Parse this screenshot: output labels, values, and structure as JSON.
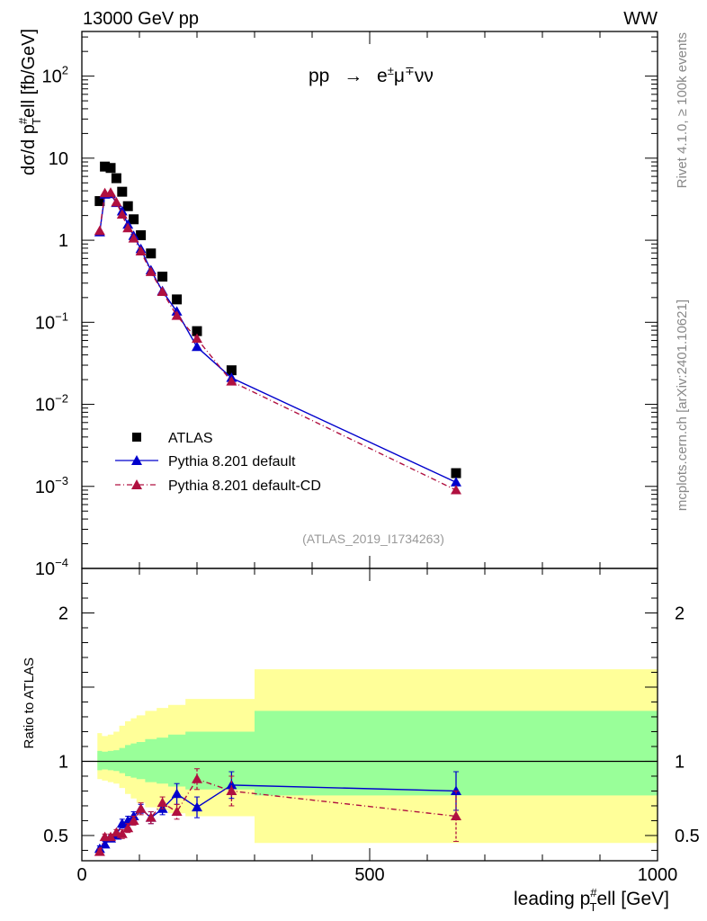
{
  "chart_data": {
    "type": "scatter",
    "header_left": "13000 GeV pp",
    "header_right": "WW",
    "process_label": "pp → e±μ∓νν",
    "process_parts": {
      "pp": "pp",
      "arrow": "→",
      "e": "e",
      "e_sup": "±",
      "mu": "μ",
      "mu_sup": "∓",
      "nunu": "νν"
    },
    "side_label_top": "Rivet 4.1.0, ≥ 100k events",
    "side_label_bottom": "mcplots.cern.ch [arXiv:2401.10621]",
    "analysis_id": "(ATLAS_2019_I1734263)",
    "main_ylabel": {
      "prefix": "dσ/d p",
      "sup": "#",
      "sub": "T",
      "suffix": "ell [fb/GeV]"
    },
    "ratio_ylabel": "Ratio to ATLAS",
    "xlabel": {
      "prefix": "leading p",
      "sup": "#",
      "sub": "T",
      "suffix": "ell [GeV]"
    },
    "xlim": [
      0,
      1000
    ],
    "main_ylim": [
      0.0001,
      350
    ],
    "ratio_ylim": [
      0.33,
      2.3
    ],
    "x_ticks": [
      {
        "v": 0,
        "label": "0"
      },
      {
        "v": 500,
        "label": "500"
      },
      {
        "v": 1000,
        "label": "1000"
      }
    ],
    "main_y_ticks": [
      {
        "v": 100,
        "base": "10",
        "exp": "2"
      },
      {
        "v": 10,
        "base": "10",
        "exp": ""
      },
      {
        "v": 1,
        "base": "1",
        "exp": ""
      },
      {
        "v": 0.1,
        "base": "10",
        "exp": "−1"
      },
      {
        "v": 0.01,
        "base": "10",
        "exp": "−2"
      },
      {
        "v": 0.001,
        "base": "10",
        "exp": "−3"
      },
      {
        "v": 0.0001,
        "base": "10",
        "exp": "−4"
      }
    ],
    "ratio_y_ticks": [
      {
        "v": 0.5,
        "label": "0.5"
      },
      {
        "v": 1,
        "label": "1"
      },
      {
        "v": 2,
        "label": "2"
      }
    ],
    "bin_edges": [
      27,
      35,
      45,
      55,
      65,
      75,
      85,
      95,
      110,
      130,
      150,
      180,
      220,
      300,
      1000
    ],
    "ratio_band_stat_hi": [
      1.07,
      1.065,
      1.07,
      1.075,
      1.09,
      1.11,
      1.12,
      1.13,
      1.15,
      1.16,
      1.18,
      1.2,
      1.2,
      1.34
    ],
    "ratio_band_stat_lo": [
      0.94,
      0.945,
      0.94,
      0.935,
      0.92,
      0.9,
      0.89,
      0.88,
      0.86,
      0.85,
      0.83,
      0.81,
      0.81,
      0.77
    ],
    "ratio_band_tot_hi": [
      1.19,
      1.17,
      1.18,
      1.2,
      1.24,
      1.27,
      1.29,
      1.31,
      1.34,
      1.36,
      1.38,
      1.42,
      1.42,
      1.62
    ],
    "ratio_band_tot_lo": [
      0.88,
      0.87,
      0.86,
      0.85,
      0.82,
      0.78,
      0.75,
      0.72,
      0.69,
      0.67,
      0.65,
      0.63,
      0.63,
      0.45
    ],
    "series": [
      {
        "name": "ATLAS",
        "color": "#000000",
        "marker": "square",
        "x": [
          31,
          40,
          50,
          60,
          70,
          80,
          90,
          102.5,
          120,
          140,
          165,
          200,
          260,
          650
        ],
        "y": [
          3.0,
          7.9,
          7.6,
          5.7,
          3.9,
          2.6,
          1.8,
          1.15,
          0.69,
          0.36,
          0.19,
          0.078,
          0.026,
          0.00145
        ]
      },
      {
        "name": "Pythia 8.201 default",
        "color": "#0000cc",
        "marker": "triangle",
        "line": "solid",
        "x": [
          31,
          40,
          50,
          60,
          70,
          80,
          90,
          102.5,
          120,
          140,
          165,
          200,
          260,
          650
        ],
        "y": [
          1.25,
          3.6,
          3.65,
          2.85,
          2.25,
          1.55,
          1.13,
          0.78,
          0.43,
          0.24,
          0.135,
          0.05,
          0.021,
          0.00112
        ],
        "ratio": [
          0.41,
          0.44,
          0.48,
          0.5,
          0.58,
          0.6,
          0.63,
          0.68,
          0.62,
          0.68,
          0.78,
          0.69,
          0.84,
          0.8
        ],
        "ratio_err": [
          0.02,
          0.02,
          0.02,
          0.02,
          0.03,
          0.03,
          0.03,
          0.03,
          0.04,
          0.04,
          0.07,
          0.07,
          0.09,
          0.13
        ]
      },
      {
        "name": "Pythia 8.201 default-CD",
        "color": "#b01040",
        "marker": "triangle",
        "line": "dashdot",
        "x": [
          31,
          40,
          50,
          60,
          70,
          80,
          90,
          102.5,
          120,
          140,
          165,
          200,
          260,
          650
        ],
        "y": [
          1.3,
          3.75,
          3.8,
          2.9,
          2.05,
          1.4,
          1.05,
          0.73,
          0.41,
          0.235,
          0.12,
          0.063,
          0.019,
          0.0009
        ],
        "ratio": [
          0.39,
          0.49,
          0.49,
          0.52,
          0.51,
          0.55,
          0.6,
          0.68,
          0.62,
          0.72,
          0.66,
          0.88,
          0.8,
          0.63
        ],
        "ratio_err": [
          0.02,
          0.02,
          0.02,
          0.02,
          0.03,
          0.03,
          0.03,
          0.04,
          0.04,
          0.04,
          0.05,
          0.07,
          0.1,
          0.17
        ]
      }
    ]
  }
}
